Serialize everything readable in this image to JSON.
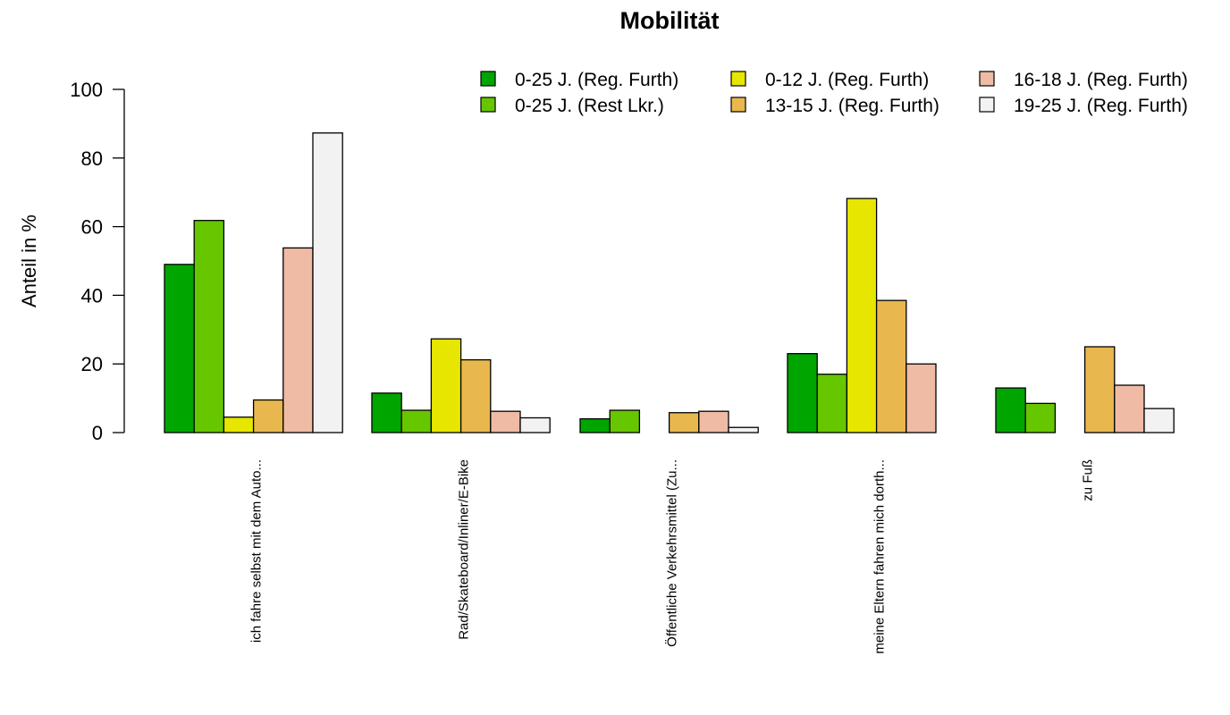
{
  "chart_data": {
    "type": "bar",
    "title": "Mobilität",
    "xlabel": "",
    "ylabel": "Anteil in %",
    "ylim": [
      0,
      100
    ],
    "yticks": [
      0,
      20,
      40,
      60,
      80,
      100
    ],
    "grid": false,
    "legend_position": "top-right",
    "categories": [
      "ich fahre selbst mit dem Auto...",
      "Rad/Skateboard/Inliner/E-Bike",
      "Öffentliche Verkehrsmittel (Zu...",
      "meine Eltern fahren mich dorth...",
      "zu Fuß"
    ],
    "series": [
      {
        "name": "0-25 J. (Reg. Furth)",
        "color": "#00a500",
        "values": [
          49,
          11.5,
          4,
          23,
          13
        ]
      },
      {
        "name": "0-25 J. (Rest Lkr.)",
        "color": "#66c600",
        "values": [
          61.8,
          6.5,
          6.5,
          17,
          8.5
        ]
      },
      {
        "name": "0-12 J. (Reg. Furth)",
        "color": "#e6e600",
        "values": [
          4.5,
          27.3,
          0,
          68.2,
          0
        ]
      },
      {
        "name": "13-15 J. (Reg. Furth)",
        "color": "#e8b84e",
        "values": [
          9.5,
          21.2,
          5.8,
          38.5,
          25
        ]
      },
      {
        "name": "16-18 J. (Reg. Furth)",
        "color": "#efbba4",
        "values": [
          53.8,
          6.2,
          6.2,
          20,
          13.8
        ]
      },
      {
        "name": "19-25 J. (Reg. Furth)",
        "color": "#f2f2f2",
        "values": [
          87.3,
          4.3,
          1.5,
          0,
          7
        ]
      }
    ]
  }
}
